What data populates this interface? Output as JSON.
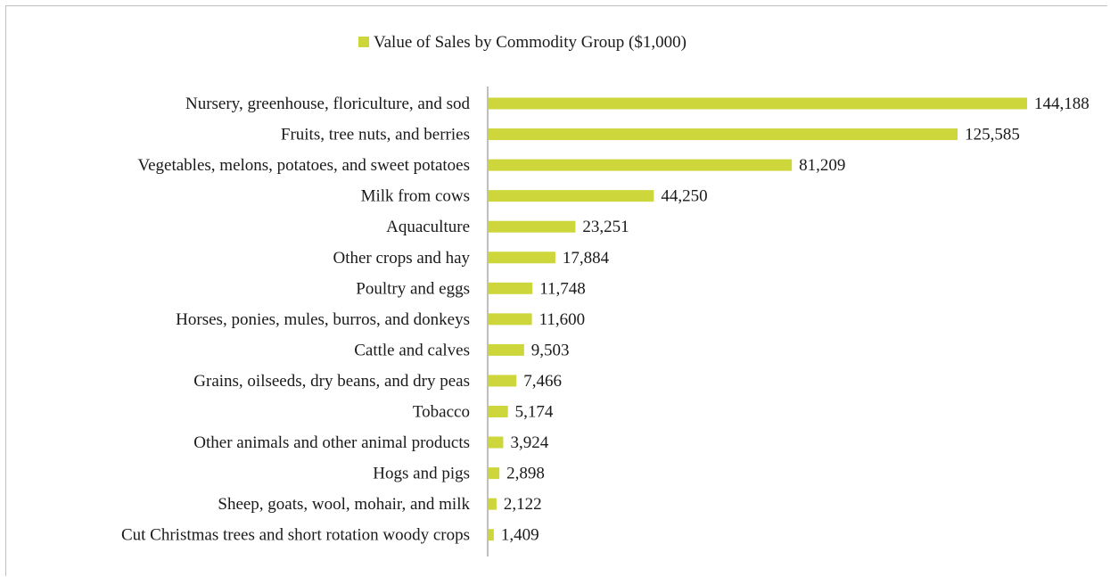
{
  "chart_data": {
    "type": "bar",
    "orientation": "horizontal",
    "legend_position": "top-center",
    "grid": false,
    "xlim": [
      0,
      150000
    ],
    "series": [
      {
        "name": "Value of Sales by Commodity Group ($1,000)",
        "color": "#cdd63b",
        "values": [
          144188,
          125585,
          81209,
          44250,
          23251,
          17884,
          11748,
          11600,
          9503,
          7466,
          5174,
          3924,
          2898,
          2122,
          1409
        ],
        "value_labels": [
          "144,188",
          "125,585",
          "81,209",
          "44,250",
          "23,251",
          "17,884",
          "11,748",
          "11,600",
          "9,503",
          "7,466",
          "5,174",
          "3,924",
          "2,898",
          "2,122",
          "1,409"
        ]
      }
    ],
    "categories": [
      "Nursery, greenhouse, floriculture, and sod",
      "Fruits, tree nuts, and berries",
      "Vegetables, melons, potatoes, and sweet potatoes",
      "Milk from cows",
      "Aquaculture",
      "Other crops and hay",
      "Poultry and eggs",
      "Horses, ponies, mules, burros, and donkeys",
      "Cattle and calves",
      "Grains, oilseeds, dry beans, and dry peas",
      "Tobacco",
      "Other animals and other animal products",
      "Hogs and pigs",
      "Sheep, goats, wool, mohair, and milk",
      "Cut Christmas trees and short rotation woody crops"
    ]
  }
}
